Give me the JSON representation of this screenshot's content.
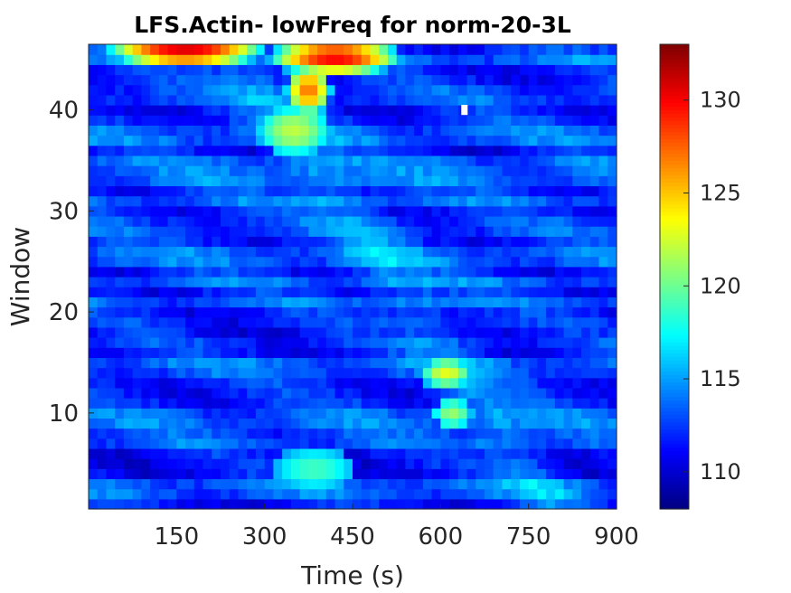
{
  "chart_data": {
    "type": "heatmap",
    "title": "LFS.Actin- lowFreq for norm-20-3L",
    "xlabel": "Time (s)",
    "ylabel": "Window",
    "xlim": [
      0,
      900
    ],
    "ylim": [
      0.5,
      46.5
    ],
    "xticks": [
      150,
      300,
      450,
      600,
      750,
      900
    ],
    "yticks": [
      10,
      20,
      30,
      40
    ],
    "colorbar": {
      "colormap": "jet",
      "clim": [
        108,
        133
      ],
      "ticks": [
        110,
        115,
        120,
        125,
        130
      ]
    },
    "grid_shape": {
      "rows": 46,
      "time_bins": 60
    },
    "value_range": [
      108,
      133
    ],
    "hotspots": [
      {
        "time": [
          40,
          290
        ],
        "window": [
          45,
          46.5
        ],
        "value": 131
      },
      {
        "time": [
          320,
          520
        ],
        "window": [
          44,
          46.5
        ],
        "value": 130
      },
      {
        "time": [
          350,
          400
        ],
        "window": [
          40,
          44
        ],
        "value": 127
      },
      {
        "time": [
          300,
          400
        ],
        "window": [
          36,
          40
        ],
        "value": 122
      },
      {
        "time": [
          580,
          640
        ],
        "window": [
          13,
          15
        ],
        "value": 123
      },
      {
        "time": [
          600,
          640
        ],
        "window": [
          9,
          11
        ],
        "value": 121
      },
      {
        "time": [
          330,
          440
        ],
        "window": [
          3,
          6
        ],
        "value": 119
      }
    ],
    "missing_cell": {
      "time": 640,
      "window": 40
    }
  }
}
